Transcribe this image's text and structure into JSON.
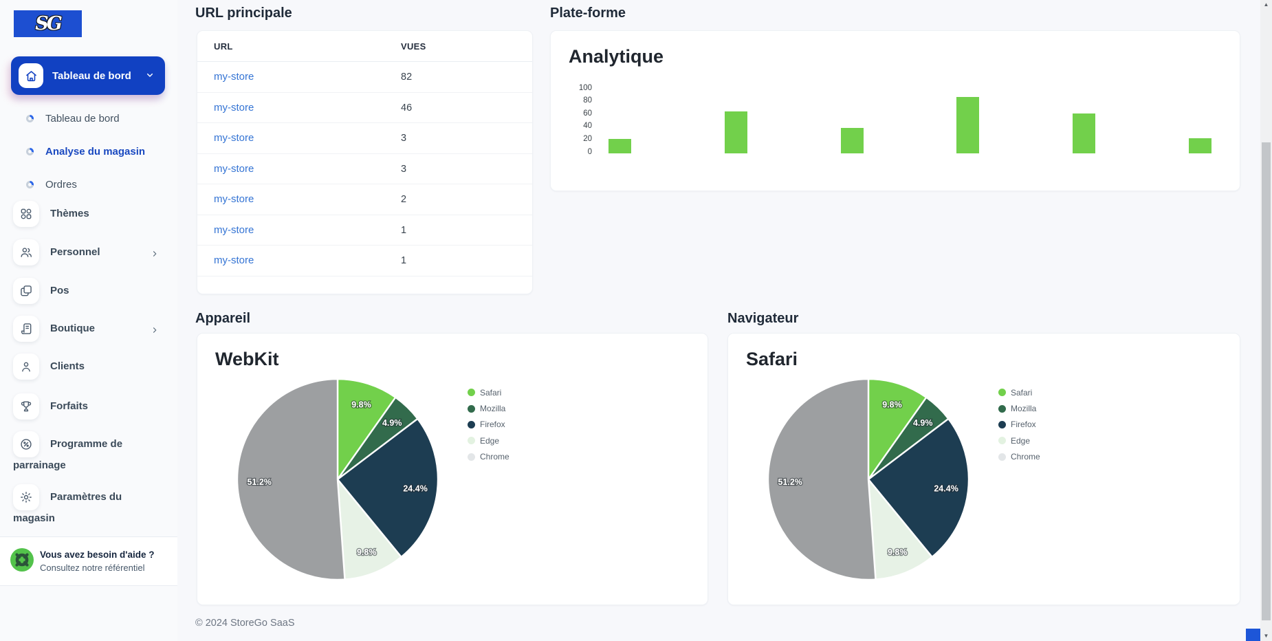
{
  "colors": {
    "accent_blue": "#1141c2",
    "logo_blue": "#1d4fd1",
    "link_blue": "#3474d4",
    "bar_green": "#72d04b",
    "help_green": "#53c24b",
    "page_background": "#f7f8fb"
  },
  "sidebar": {
    "logo_text": "SG",
    "active_item": {
      "key": "tableau-de-bord",
      "label": "Tableau de bord"
    },
    "submenu": [
      {
        "key": "tableau-de-bord",
        "label": "Tableau de bord",
        "active": false
      },
      {
        "key": "analyse-du-magasin",
        "label": "Analyse du magasin",
        "active": true
      },
      {
        "key": "ordres",
        "label": "Ordres",
        "active": false
      }
    ],
    "items": [
      {
        "key": "themes",
        "label": "Thèmes",
        "icon": "grid-icon",
        "chevron": false
      },
      {
        "key": "personnel",
        "label": "Personnel",
        "icon": "users-icon",
        "chevron": true
      },
      {
        "key": "pos",
        "label": "Pos",
        "icon": "copy-icon",
        "chevron": false
      },
      {
        "key": "boutique",
        "label": "Boutique",
        "icon": "scroll-icon",
        "chevron": true
      },
      {
        "key": "clients",
        "label": "Clients",
        "icon": "user-icon",
        "chevron": false
      },
      {
        "key": "forfaits",
        "label": "Forfaits",
        "icon": "trophy-icon",
        "chevron": false
      },
      {
        "key": "programme-de-parrainage",
        "label": "Programme de parrainage",
        "icon": "badge-percent-icon",
        "chevron": false
      },
      {
        "key": "parametres-du-magasin",
        "label": "Paramètres du magasin",
        "icon": "gear-icon",
        "chevron": false
      }
    ],
    "help": {
      "title": "Vous avez besoin d'aide ?",
      "subtitle": "Consultez notre référentiel"
    }
  },
  "main": {
    "url_section_title": "URL principale",
    "platform_section_title": "Plate-forme",
    "device_section_title": "Appareil",
    "browser_section_title": "Navigateur",
    "table": {
      "headers": [
        "URL",
        "VUES"
      ],
      "rows": [
        {
          "url": "my-store",
          "views": "82"
        },
        {
          "url": "my-store",
          "views": "46"
        },
        {
          "url": "my-store",
          "views": "3"
        },
        {
          "url": "my-store",
          "views": "3"
        },
        {
          "url": "my-store",
          "views": "2"
        },
        {
          "url": "my-store",
          "views": "1"
        },
        {
          "url": "my-store",
          "views": "1"
        }
      ]
    },
    "footer": "© 2024 StoreGo SaaS"
  },
  "chart_data": [
    {
      "type": "bar",
      "title": "Analytique",
      "categories": [
        "",
        "",
        "",
        "",
        "",
        ""
      ],
      "values": [
        22,
        65,
        40,
        88,
        62,
        24
      ],
      "yticks": [
        100,
        80,
        60,
        40,
        20,
        0
      ],
      "ylim": [
        0,
        100
      ],
      "xlabel": "",
      "ylabel": "",
      "grid": false,
      "legend": "none",
      "bar_color": "#72d04b"
    },
    {
      "type": "pie",
      "title": "WebKit",
      "labels": [
        "Safari",
        "Mozilla",
        "Firefox",
        "Edge",
        "Chrome"
      ],
      "values": [
        9.8,
        4.9,
        24.4,
        9.8,
        51.2
      ],
      "value_labels": [
        "9.8%",
        "4.9%",
        "24.4%",
        "9.8%",
        "51.2%"
      ],
      "colors": [
        "#72d04b",
        "#326b4c",
        "#1d3d52",
        "#e7f2e6",
        "#9d9fa1"
      ],
      "legend_marker_colors": [
        "#72d04b",
        "#326b4c",
        "#1d3d52",
        "#e3f2e1",
        "#e3e6e8"
      ],
      "legend_position": "right",
      "start_angle": "top",
      "direction": "clockwise"
    },
    {
      "type": "pie",
      "title": "Safari",
      "labels": [
        "Safari",
        "Mozilla",
        "Firefox",
        "Edge",
        "Chrome"
      ],
      "values": [
        9.8,
        4.9,
        24.4,
        9.8,
        51.2
      ],
      "value_labels": [
        "9.8%",
        "4.9%",
        "24.4%",
        "9.8%",
        "51.2%"
      ],
      "colors": [
        "#72d04b",
        "#326b4c",
        "#1d3d52",
        "#e7f2e6",
        "#9d9fa1"
      ],
      "legend_marker_colors": [
        "#72d04b",
        "#326b4c",
        "#1d3d52",
        "#e3f2e1",
        "#e3e6e8"
      ],
      "legend_position": "right",
      "start_angle": "top",
      "direction": "clockwise"
    }
  ]
}
